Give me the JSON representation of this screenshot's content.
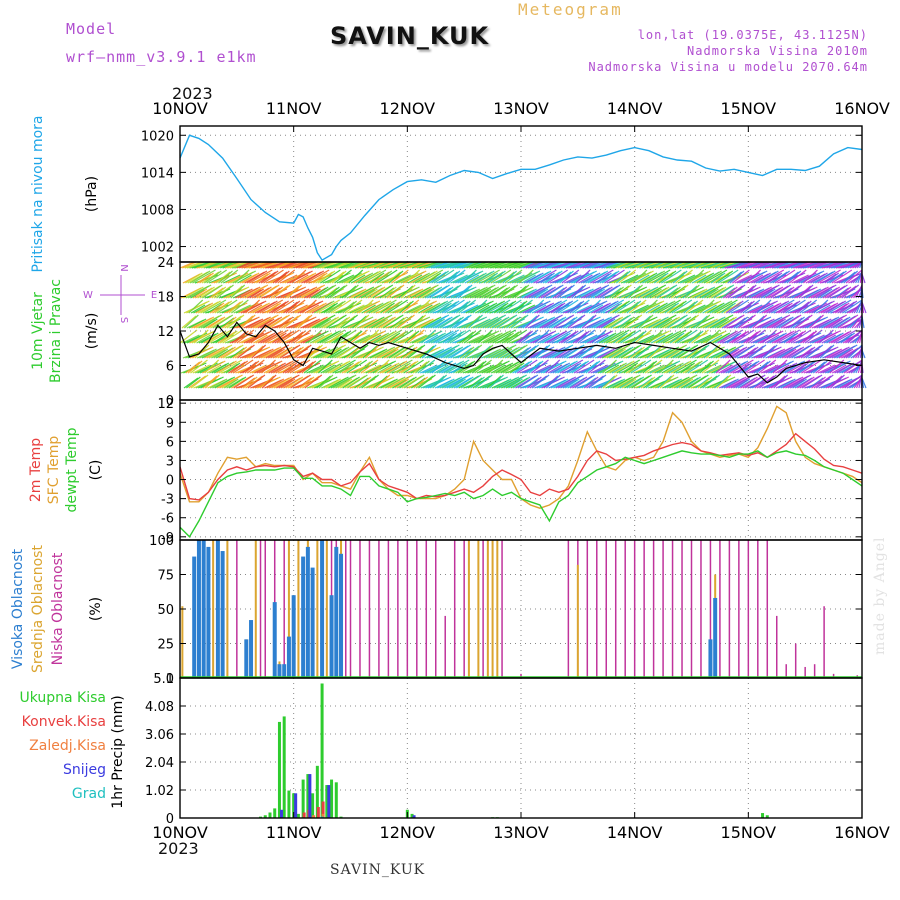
{
  "header": {
    "model_label": "Model",
    "model_name": "wrf—nmm_v3.9.1  e1km",
    "station": "SAVIN_KUK",
    "title": "Meteogram",
    "lonlat": "lon,lat (19.0375E, 43.1125N)",
    "elevation": "Nadmorska Visina 2010m",
    "model_elevation": "Nadmorska Visina u modelu 2070.64m",
    "year": "2023"
  },
  "footer": {
    "station": "SAVIN_KUK",
    "credit": "made by Angel"
  },
  "colors": {
    "pressure": "#1fa6e8",
    "temp2m": "#e84040",
    "sfc_temp": "#e0a030",
    "dewpt": "#2ecc2e",
    "cloud_high": "#2d7fd0",
    "cloud_mid": "#dba530",
    "cloud_low": "#c0339b",
    "precip_total": "#2ecc2e",
    "precip_conv": "#e84040",
    "precip_frz": "#f08040",
    "precip_snow": "#3b3be0",
    "precip_grad": "#20c0c0",
    "wind_dir_labels": "#b04fd0"
  },
  "chart_data": [
    {
      "type": "line",
      "panel": "pressure",
      "title": "",
      "xlabel": "",
      "ylabel": "Pritisak na nivou mora",
      "unit": "(hPa)",
      "x_ticks": [
        "10NOV",
        "11NOV",
        "12NOV",
        "13NOV",
        "14NOV",
        "15NOV",
        "16NOV"
      ],
      "y_ticks": [
        "1002",
        "1008",
        "1014",
        "1020"
      ],
      "ylim": [
        999.5,
        1021.5
      ],
      "grid": true,
      "x_hours": [
        0,
        2,
        4,
        6,
        9,
        12,
        15,
        18,
        21,
        24,
        25,
        26,
        27,
        28,
        29,
        30,
        32,
        33,
        34,
        36,
        39,
        42,
        45,
        48,
        51,
        54,
        57,
        60,
        63,
        66,
        69,
        72,
        75,
        78,
        81,
        84,
        87,
        90,
        93,
        96,
        99,
        102,
        105,
        108,
        111,
        114,
        117,
        120,
        123,
        126,
        129,
        132,
        135,
        138,
        141,
        144
      ],
      "series": [
        {
          "values": [
            1016.3,
            1020.0,
            1019.5,
            1018.5,
            1016.3,
            1013.0,
            1009.6,
            1007.5,
            1006.0,
            1005.8,
            1007.2,
            1006.8,
            1005.0,
            1003.5,
            1001.0,
            999.8,
            1000.7,
            1002.0,
            1003.0,
            1004.2,
            1007.0,
            1009.6,
            1011.2,
            1012.5,
            1012.8,
            1012.4,
            1013.5,
            1014.3,
            1014.0,
            1013.0,
            1013.8,
            1014.5,
            1014.5,
            1015.2,
            1016.0,
            1016.5,
            1016.3,
            1016.8,
            1017.5,
            1018.0,
            1017.5,
            1016.5,
            1016.0,
            1015.8,
            1014.7,
            1014.2,
            1014.5,
            1014.0,
            1013.5,
            1014.5,
            1014.5,
            1014.3,
            1015.0,
            1017.0,
            1018.0,
            1017.7
          ]
        }
      ]
    },
    {
      "type": "line",
      "panel": "wind",
      "title": "",
      "xlabel": "",
      "ylabel": "10m Vjetar Brzina i Pravac",
      "unit": "(m/s)",
      "direction_labels": [
        "N",
        "W",
        "E",
        "S"
      ],
      "y_ticks": [
        "0",
        "6",
        "12",
        "18",
        "24"
      ],
      "ylim": [
        0,
        24
      ],
      "grid": true,
      "x_hours": [
        0,
        2,
        4,
        6,
        8,
        10,
        12,
        14,
        16,
        18,
        20,
        22,
        24,
        26,
        28,
        30,
        32,
        34,
        36,
        38,
        40,
        42,
        44,
        46,
        48,
        52,
        56,
        60,
        62,
        64,
        66,
        68,
        70,
        72,
        76,
        80,
        84,
        88,
        92,
        96,
        100,
        104,
        108,
        112,
        114,
        116,
        118,
        120,
        122,
        124,
        126,
        128,
        132,
        136,
        140,
        144
      ],
      "series": [
        {
          "name": "speed",
          "values": [
            12,
            7.5,
            8,
            10,
            13,
            11,
            13.5,
            11.5,
            11,
            13,
            12,
            10,
            7,
            6,
            9,
            8.5,
            8,
            11,
            10,
            9,
            10,
            9.5,
            10,
            9.5,
            9,
            8,
            6.5,
            5.5,
            6,
            8,
            9,
            9.5,
            8,
            6.5,
            9,
            8.5,
            9,
            9.5,
            9,
            10,
            9.5,
            9,
            8.5,
            10,
            9,
            8,
            6,
            4,
            4.5,
            3,
            4,
            5.5,
            6.5,
            7,
            6.5,
            6
          ]
        }
      ]
    },
    {
      "type": "line",
      "panel": "temperature",
      "title": "",
      "xlabel": "",
      "ylabel": "2m Temp / SFC Temp / dewpt Temp",
      "unit": "(C)",
      "y_ticks": [
        "-9",
        "-6",
        "-3",
        "0",
        "3",
        "6",
        "9",
        "12"
      ],
      "ylim": [
        -9.5,
        12.5
      ],
      "grid": true,
      "x_hours": [
        0,
        2,
        4,
        6,
        8,
        10,
        12,
        14,
        16,
        18,
        20,
        22,
        24,
        26,
        28,
        30,
        32,
        34,
        36,
        38,
        40,
        42,
        44,
        46,
        48,
        50,
        52,
        54,
        56,
        58,
        60,
        62,
        64,
        66,
        68,
        70,
        72,
        74,
        76,
        78,
        80,
        82,
        84,
        86,
        88,
        90,
        92,
        94,
        96,
        98,
        100,
        102,
        104,
        106,
        108,
        110,
        112,
        114,
        116,
        118,
        120,
        122,
        124,
        126,
        128,
        130,
        132,
        134,
        136,
        138,
        140,
        142,
        144
      ],
      "series": [
        {
          "name": "2m Temp",
          "values": [
            2,
            -3,
            -3.2,
            -2,
            0,
            1.5,
            2,
            1.5,
            2,
            2.2,
            2,
            2.2,
            2,
            0.5,
            1,
            0,
            0,
            -1,
            -0.5,
            1.2,
            2.5,
            0,
            -1,
            -1.5,
            -2,
            -3,
            -2.5,
            -2.7,
            -2.5,
            -2,
            -1.5,
            -2,
            -1,
            0.5,
            1.5,
            0.8,
            0,
            -2,
            -2.5,
            -1.5,
            -2,
            -1.5,
            0.5,
            3,
            4.5,
            4,
            3,
            3.2,
            3.5,
            3.8,
            4.5,
            5,
            5.5,
            5.8,
            5.5,
            4.5,
            4.2,
            3.8,
            4,
            4.2,
            3.8,
            4.2,
            3.5,
            4.5,
            5.5,
            7.2,
            6,
            4.8,
            3.2,
            2.2,
            2,
            1.5,
            1
          ]
        },
        {
          "name": "SFC Temp",
          "values": [
            1,
            -3.5,
            -3.5,
            -2,
            1,
            3.5,
            3.2,
            3.5,
            2,
            2.5,
            2.2,
            2.2,
            2.2,
            0,
            1,
            -0.5,
            -0.5,
            -1,
            -1.5,
            1.2,
            3.5,
            0,
            -1.5,
            -2.5,
            -2.5,
            -3,
            -3,
            -3,
            -2.5,
            -1.5,
            0,
            6,
            3,
            1.5,
            0,
            0,
            -3,
            -4,
            -4.5,
            -4,
            -3,
            -1,
            3,
            7.5,
            4.5,
            2,
            1.5,
            3,
            3.5,
            3,
            3.5,
            6,
            10.5,
            9,
            6,
            4.5,
            4,
            3.5,
            3.8,
            4,
            3.5,
            5,
            8,
            11.5,
            10.5,
            6,
            3.5,
            2.5,
            2,
            1.5,
            1,
            0.5,
            -0.5
          ]
        },
        {
          "name": "dewpt Temp",
          "values": [
            -7.5,
            -9,
            -6.5,
            -3.5,
            -0.5,
            0.5,
            1,
            1.2,
            1.5,
            1.5,
            1.5,
            1.8,
            1.8,
            0.2,
            0.2,
            -1,
            -1,
            -1.5,
            -2.5,
            0.5,
            0.5,
            -1,
            -1.5,
            -2,
            -3.5,
            -3,
            -2.8,
            -2.5,
            -2.2,
            -2.5,
            -2,
            -3,
            -2.5,
            -1.5,
            -2.5,
            -2,
            -3,
            -3.5,
            -4,
            -6.5,
            -3.5,
            -2.5,
            -0.5,
            0.5,
            1.5,
            2,
            2.5,
            3.5,
            3,
            2.5,
            3,
            3.5,
            4,
            4.5,
            4.2,
            4,
            4,
            3.8,
            3.5,
            4,
            4,
            4.5,
            3.5,
            4.2,
            4.5,
            4,
            3.8,
            3,
            2,
            1.5,
            1,
            0,
            -1
          ]
        }
      ]
    },
    {
      "type": "bar",
      "panel": "clouds",
      "title": "",
      "xlabel": "",
      "ylabel": "Visoka Oblacnost / Srednja Oblacnost / Niska Oblacnost",
      "unit": "(%)",
      "y_ticks": [
        "0",
        "25",
        "50",
        "75",
        "100"
      ],
      "ylim": [
        0,
        100
      ],
      "grid": true,
      "series": [
        {
          "name": "Visoka Oblacnost",
          "x_hours": [
            3,
            4,
            5,
            6,
            8,
            9,
            14,
            15,
            20,
            21,
            22,
            23,
            24,
            26,
            27,
            28,
            30,
            32,
            33,
            34,
            112,
            113
          ],
          "values": [
            88,
            100,
            100,
            95,
            100,
            92,
            28,
            42,
            55,
            10,
            10,
            30,
            60,
            88,
            95,
            80,
            100,
            60,
            95,
            90,
            28,
            58
          ]
        },
        {
          "name": "Srednja Oblacnost",
          "x_hours": [
            0.5,
            5,
            7,
            9,
            10,
            14,
            16,
            21,
            23,
            25,
            27,
            29,
            31,
            34,
            61,
            63,
            65,
            66,
            67,
            84,
            113
          ],
          "values": [
            52,
            100,
            100,
            28,
            100,
            28,
            100,
            12,
            100,
            100,
            100,
            100,
            100,
            100,
            100,
            100,
            100,
            100,
            100,
            82,
            75
          ]
        },
        {
          "name": "Niska Oblacnost",
          "x_hours": [
            7,
            10,
            12,
            17,
            18,
            20,
            22,
            25,
            27,
            29,
            30,
            31,
            32,
            33,
            35,
            36,
            38,
            40,
            42,
            44,
            46,
            48,
            50,
            52,
            54,
            56,
            58,
            60,
            64,
            68,
            72,
            82,
            84,
            86,
            88,
            90,
            92,
            94,
            96,
            98,
            100,
            102,
            104,
            106,
            108,
            110,
            112,
            114,
            116,
            118,
            120,
            122,
            124,
            126,
            128,
            130,
            132,
            134,
            136,
            138,
            143
          ],
          "values": [
            100,
            100,
            100,
            100,
            100,
            100,
            100,
            100,
            100,
            100,
            100,
            100,
            100,
            100,
            100,
            100,
            100,
            100,
            100,
            100,
            100,
            100,
            100,
            100,
            100,
            45,
            100,
            100,
            100,
            100,
            3,
            100,
            100,
            100,
            100,
            100,
            100,
            100,
            100,
            100,
            100,
            100,
            100,
            100,
            100,
            100,
            100,
            100,
            100,
            100,
            100,
            100,
            100,
            45,
            10,
            25,
            8,
            10,
            52,
            3,
            2
          ]
        }
      ]
    },
    {
      "type": "bar",
      "panel": "precipitation",
      "title": "",
      "xlabel": "",
      "ylabel": "1hr Precip",
      "unit": "(mm)",
      "y_ticks": [
        "0",
        "1.02",
        "2.04",
        "3.06",
        "4.08",
        "5.1"
      ],
      "ylim": [
        0,
        5.1
      ],
      "x_ticks": [
        "10NOV",
        "11NOV",
        "12NOV",
        "13NOV",
        "14NOV",
        "15NOV",
        "16NOV"
      ],
      "grid": true,
      "series": [
        {
          "name": "Ukupna Kisa",
          "x_hours": [
            17,
            18,
            19,
            20,
            21,
            22,
            23,
            24,
            25,
            26,
            27,
            28,
            29,
            30,
            31,
            32,
            33,
            34,
            48,
            49,
            66,
            67,
            123,
            124
          ],
          "values": [
            0.05,
            0.1,
            0.2,
            0.35,
            3.5,
            3.7,
            1.0,
            0.9,
            0.15,
            1.4,
            1.6,
            0.9,
            1.9,
            4.9,
            1.2,
            1.4,
            1.3,
            0.05,
            0.3,
            0.15,
            0.03,
            0.03,
            0.18,
            0.1
          ]
        },
        {
          "name": "Konvek.Kisa",
          "x_hours": [
            26,
            27,
            29,
            30
          ],
          "values": [
            0.2,
            0.3,
            0.4,
            0.6
          ]
        },
        {
          "name": "Zaledj.Kisa",
          "x_hours": [
            28,
            30
          ],
          "values": [
            0.1,
            0.15
          ]
        },
        {
          "name": "Snijeg",
          "x_hours": [
            21,
            24,
            27,
            31,
            49
          ],
          "values": [
            0.3,
            0.9,
            1.6,
            1.2,
            0.1
          ]
        },
        {
          "name": "Grad",
          "x_hours": [
            30
          ],
          "values": [
            0.05
          ]
        }
      ]
    }
  ]
}
